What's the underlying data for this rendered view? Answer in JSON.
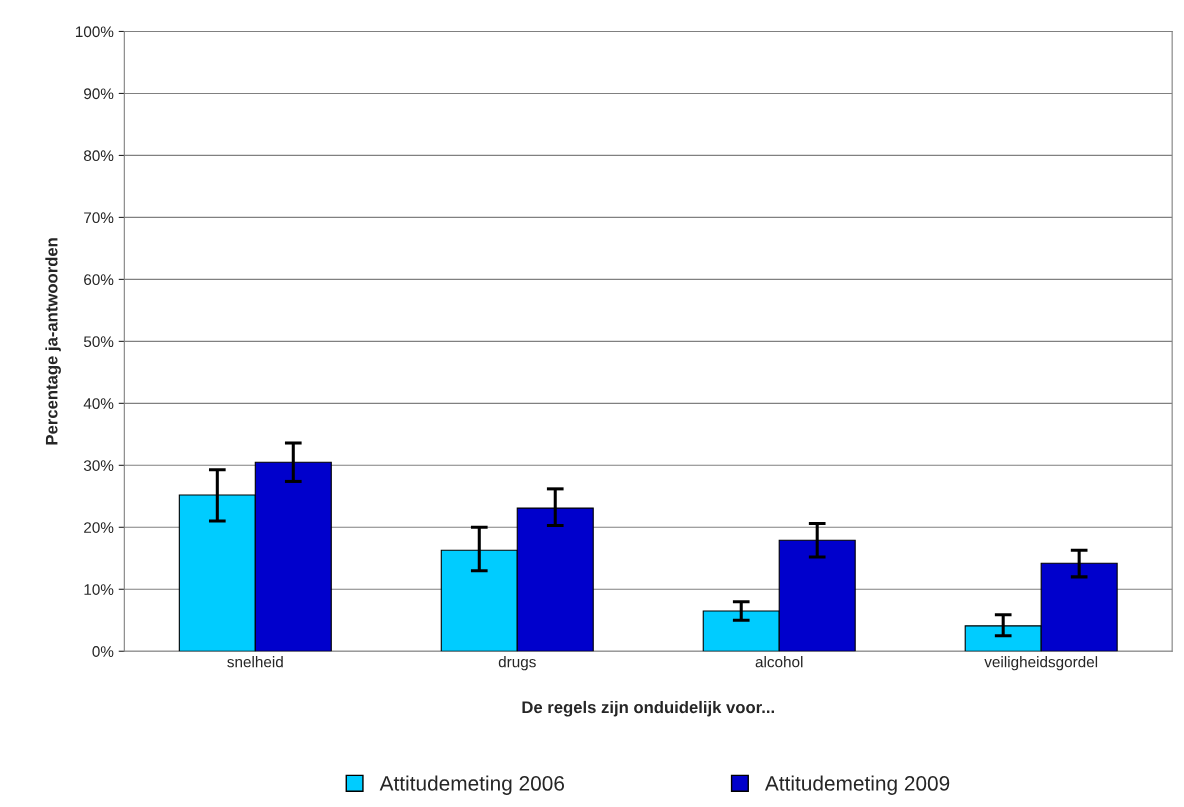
{
  "chart_data": {
    "type": "bar",
    "xlabel": "De regels zijn onduidelijk voor...",
    "ylabel": "Percentage ja-antwoorden",
    "categories": [
      "snelheid",
      "drugs",
      "alcohol",
      "veiligheidsgordel"
    ],
    "series": [
      {
        "name": "Attitudemeting 2006",
        "color": "#00ccff",
        "values": [
          25.2,
          16.3,
          6.5,
          4.1
        ],
        "errors": [
          [
            21,
            29.3
          ],
          [
            13,
            20
          ],
          [
            5,
            8
          ],
          [
            2.5,
            5.9
          ]
        ]
      },
      {
        "name": "Attitudemeting 2009",
        "color": "#0000cc",
        "values": [
          30.5,
          23.1,
          17.9,
          14.2
        ],
        "errors": [
          [
            27.4,
            33.6
          ],
          [
            20.3,
            26.2
          ],
          [
            15.2,
            20.6
          ],
          [
            12,
            16.3
          ]
        ]
      }
    ],
    "ylim": [
      0,
      100
    ],
    "yticks": [
      {
        "value": 0,
        "label": "0%"
      },
      {
        "value": 10,
        "label": "10%"
      },
      {
        "value": 20,
        "label": "20%"
      },
      {
        "value": 30,
        "label": "30%"
      },
      {
        "value": 40,
        "label": "40%"
      },
      {
        "value": 50,
        "label": "50%"
      },
      {
        "value": 60,
        "label": "60%"
      },
      {
        "value": 70,
        "label": "70%"
      },
      {
        "value": 80,
        "label": "80%"
      },
      {
        "value": 90,
        "label": "90%"
      },
      {
        "value": 100,
        "label": "100%"
      }
    ],
    "grid": "y",
    "legend": "bottom"
  }
}
